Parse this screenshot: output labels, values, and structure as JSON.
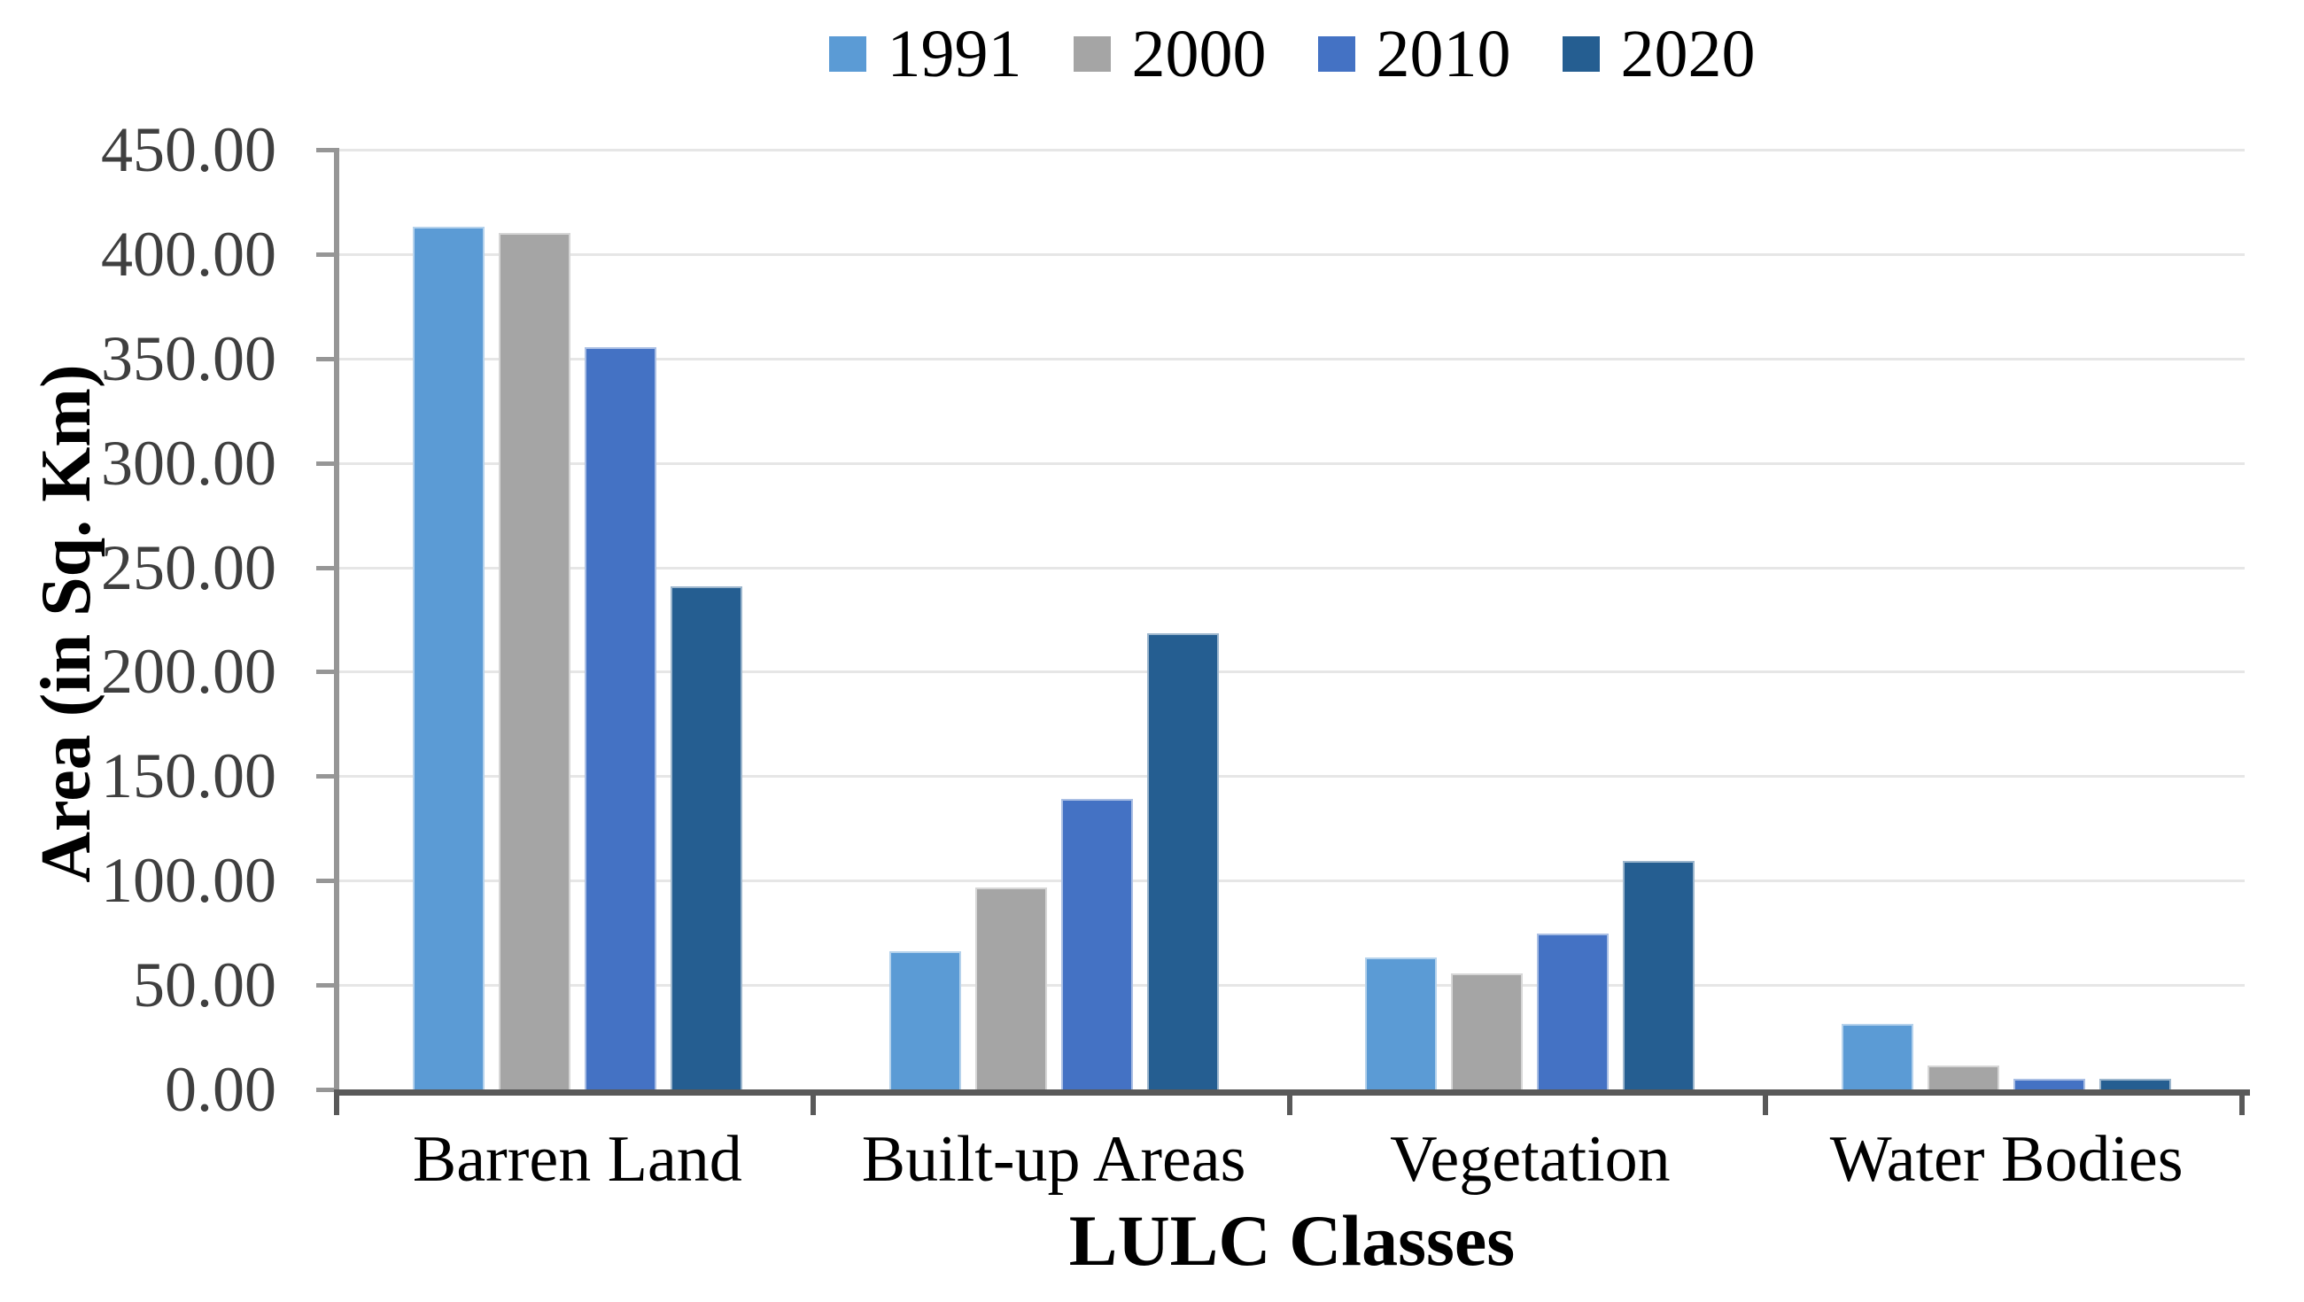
{
  "chart_data": {
    "type": "bar",
    "title": "",
    "categories": [
      "Barren Land",
      "Built-up Areas",
      "Vegetation",
      "Water Bodies"
    ],
    "series": [
      {
        "name": "1991",
        "color": "#5B9BD5",
        "values": [
          413.0,
          66.0,
          63.0,
          31.5
        ]
      },
      {
        "name": "2000",
        "color": "#A5A5A5",
        "values": [
          410.0,
          96.5,
          55.5,
          11.5
        ]
      },
      {
        "name": "2010",
        "color": "#4472C4",
        "values": [
          355.5,
          139.0,
          74.5,
          5.0
        ]
      },
      {
        "name": "2020",
        "color": "#255E91",
        "values": [
          241.0,
          218.5,
          109.5,
          5.0
        ]
      }
    ],
    "xlabel": "LULC Classes",
    "ylabel": "Area (in Sq. Km)",
    "ylim": [
      0,
      450
    ],
    "ytick_step": 50,
    "ytick_labels": [
      "0.00",
      "50.00",
      "100.00",
      "150.00",
      "200.00",
      "250.00",
      "300.00",
      "350.00",
      "400.00",
      "450.00"
    ],
    "grid": "horizontal",
    "legend_position": "top"
  },
  "style": {
    "grid_color": "#E6E6E6",
    "y_axis_color": "#969696",
    "x_axis_color": "#595959",
    "tick_label_color": "#3F3F3F",
    "text_color": "#000000",
    "background": "#FFFFFF"
  }
}
